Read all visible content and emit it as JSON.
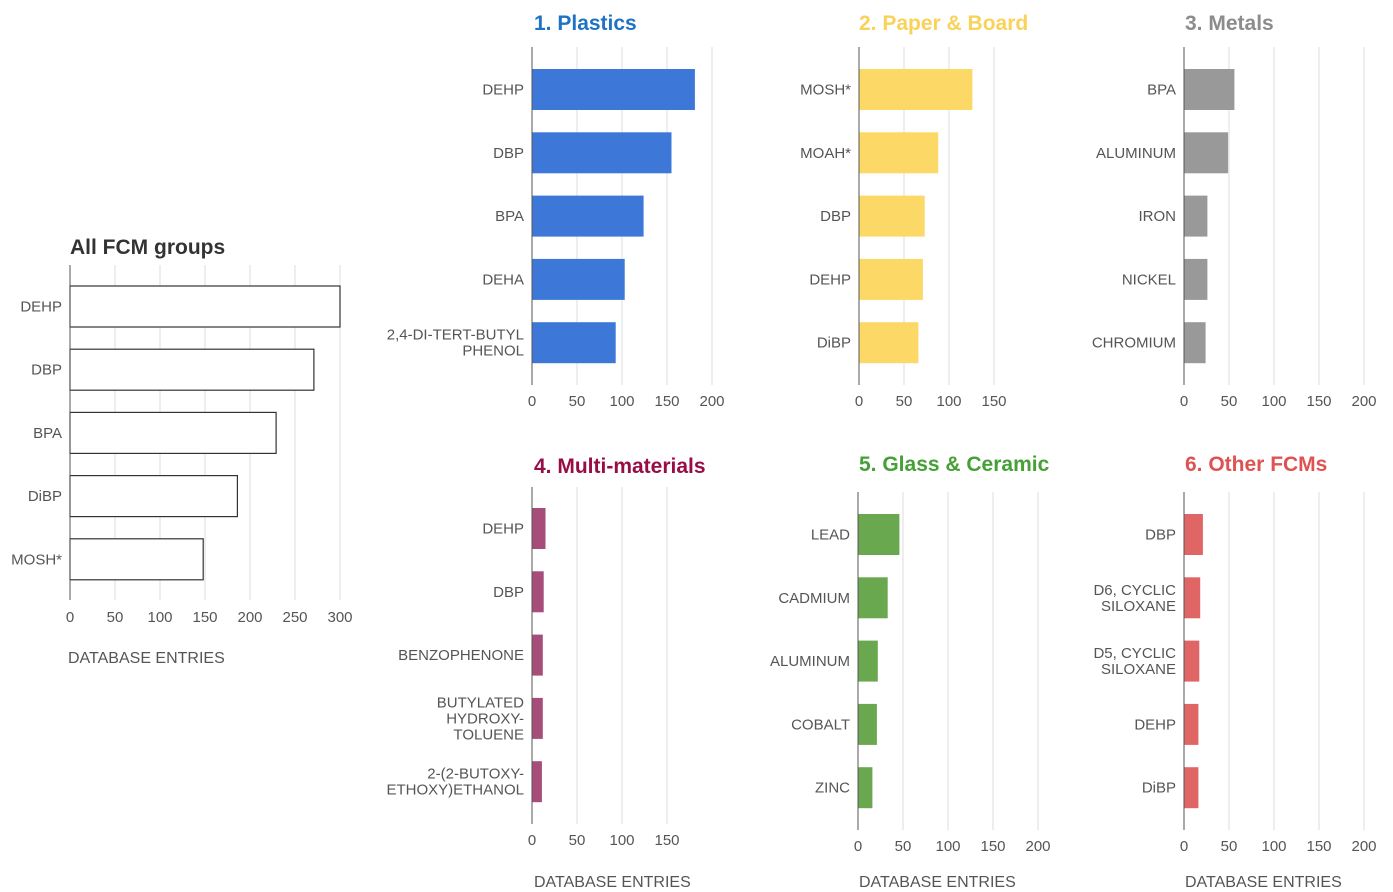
{
  "chart_data": [
    {
      "type": "bar",
      "title": "All FCM groups",
      "title_color": "#333333",
      "xlabel": "DATABASE ENTRIES",
      "ylabel": "",
      "bar_color": "#ffffff",
      "bar_stroke": "#333333",
      "categories": [
        "DEHP",
        "DBP",
        "BPA",
        "DiBP",
        "MOSH*"
      ],
      "category_lines": [
        [
          "DEHP"
        ],
        [
          "DBP"
        ],
        [
          "BPA"
        ],
        [
          "DiBP"
        ],
        [
          "MOSH*"
        ]
      ],
      "values": [
        300,
        271,
        229,
        186,
        148
      ],
      "xticks": [
        0,
        50,
        100,
        150,
        200,
        250,
        300
      ],
      "xlim": [
        0,
        300
      ],
      "grid": true
    },
    {
      "type": "bar",
      "title": "1. Plastics",
      "title_color": "#1f73c4",
      "xlabel": "",
      "ylabel": "",
      "bar_color": "#3d78d8",
      "categories": [
        "DEHP",
        "DBP",
        "BPA",
        "DEHA",
        "2,4-DI-TERT-BUTYL PHENOL"
      ],
      "category_lines": [
        [
          "DEHP"
        ],
        [
          "DBP"
        ],
        [
          "BPA"
        ],
        [
          "DEHA"
        ],
        [
          "2,4-DI-TERT-BUTYL",
          "PHENOL"
        ]
      ],
      "values": [
        181,
        155,
        124,
        103,
        93
      ],
      "xticks": [
        0,
        50,
        100,
        150,
        200
      ],
      "xlim": [
        0,
        200
      ],
      "grid": true
    },
    {
      "type": "bar",
      "title": "2. Paper & Board",
      "title_color": "#f9d25a",
      "xlabel": "",
      "ylabel": "",
      "bar_color": "#fcd966",
      "categories": [
        "MOSH*",
        "MOAH*",
        "DBP",
        "DEHP",
        "DiBP"
      ],
      "category_lines": [
        [
          "MOSH*"
        ],
        [
          "MOAH*"
        ],
        [
          "DBP"
        ],
        [
          "DEHP"
        ],
        [
          "DiBP"
        ]
      ],
      "values": [
        126,
        88,
        73,
        71,
        66
      ],
      "xticks": [
        0,
        50,
        100,
        150
      ],
      "xlim": [
        0,
        150
      ],
      "grid": true
    },
    {
      "type": "bar",
      "title": "3. Metals",
      "title_color": "#8c8c8c",
      "xlabel": "",
      "ylabel": "",
      "bar_color": "#999999",
      "categories": [
        "BPA",
        "ALUMINUM",
        "IRON",
        "NICKEL",
        "CHROMIUM"
      ],
      "category_lines": [
        [
          "BPA"
        ],
        [
          "ALUMINUM"
        ],
        [
          "IRON"
        ],
        [
          "NICKEL"
        ],
        [
          "CHROMIUM"
        ]
      ],
      "values": [
        56,
        49,
        26,
        26,
        24
      ],
      "xticks": [
        0,
        50,
        100,
        150,
        200
      ],
      "xlim": [
        0,
        200
      ],
      "grid": true
    },
    {
      "type": "bar",
      "title": "4. Multi-materials",
      "title_color": "#990d47",
      "xlabel": "DATABASE ENTRIES",
      "ylabel": "",
      "bar_color": "#a64d79",
      "categories": [
        "DEHP",
        "DBP",
        "BENZOPHENONE",
        "BUTYLATED HYDROXY- TOLUENE",
        "2-(2-BUTOXY- ETHOXY)ETHANOL"
      ],
      "category_lines": [
        [
          "DEHP"
        ],
        [
          "DBP"
        ],
        [
          "BENZOPHENONE"
        ],
        [
          "BUTYLATED",
          "HYDROXY-",
          "TOLUENE"
        ],
        [
          "2-(2-BUTOXY-",
          "ETHOXY)ETHANOL"
        ]
      ],
      "values": [
        15,
        13,
        12,
        12,
        11
      ],
      "xticks": [
        0,
        50,
        100,
        150
      ],
      "xlim": [
        0,
        150
      ],
      "grid": true
    },
    {
      "type": "bar",
      "title": "5. Glass & Ceramic",
      "title_color": "#45a035",
      "xlabel": "DATABASE ENTRIES",
      "ylabel": "",
      "bar_color": "#6aa84f",
      "categories": [
        "LEAD",
        "CADMIUM",
        "ALUMINUM",
        "COBALT",
        "ZINC"
      ],
      "category_lines": [
        [
          "LEAD"
        ],
        [
          "CADMIUM"
        ],
        [
          "ALUMINUM"
        ],
        [
          "COBALT"
        ],
        [
          "ZINC"
        ]
      ],
      "values": [
        46,
        33,
        22,
        21,
        16
      ],
      "xticks": [
        0,
        50,
        100,
        150,
        200
      ],
      "xlim": [
        0,
        200
      ],
      "grid": true
    },
    {
      "type": "bar",
      "title": "6. Other FCMs",
      "title_color": "#e05252",
      "xlabel": "DATABASE ENTRIES",
      "ylabel": "",
      "bar_color": "#e06666",
      "categories": [
        "DBP",
        "D6, CYCLIC SILOXANE",
        "D5, CYCLIC SILOXANE",
        "DEHP",
        "DiBP"
      ],
      "category_lines": [
        [
          "DBP"
        ],
        [
          "D6, CYCLIC",
          "SILOXANE"
        ],
        [
          "D5, CYCLIC",
          "SILOXANE"
        ],
        [
          "DEHP"
        ],
        [
          "DiBP"
        ]
      ],
      "values": [
        21,
        18,
        17,
        16,
        16
      ],
      "xticks": [
        0,
        50,
        100,
        150,
        200
      ],
      "xlim": [
        0,
        200
      ],
      "grid": true
    }
  ]
}
